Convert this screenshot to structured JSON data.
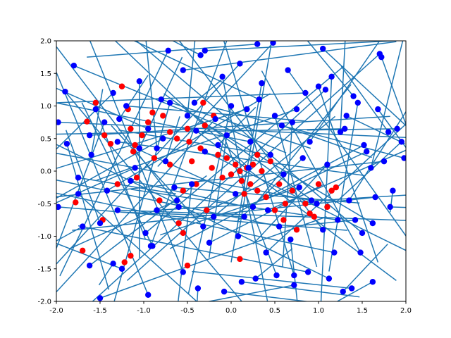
{
  "chart_data": {
    "type": "scatter",
    "title": "",
    "xlabel": "",
    "ylabel": "",
    "xlim": [
      -2.0,
      2.0
    ],
    "ylim": [
      -2.0,
      2.0
    ],
    "grid": false,
    "legend": "none",
    "xticks": [
      "-2.0",
      "-1.5",
      "-1.0",
      "-0.5",
      "0.0",
      "0.5",
      "1.0",
      "1.5",
      "2.0"
    ],
    "yticks": [
      "-2.0",
      "-1.5",
      "-1.0",
      "-0.5",
      "0.0",
      "0.5",
      "1.0",
      "1.5",
      "2.0"
    ],
    "colors": {
      "start_points": "#ff0000",
      "end_points": "#0000ff",
      "lines": "#1f77b4"
    },
    "series": [
      {
        "role": "red points",
        "color": "#ff0000",
        "x": [
          -1.65,
          -1.78,
          -1.55,
          -1.47,
          -1.38,
          -1.25,
          -1.18,
          -1.15,
          -1.12,
          -1.08,
          -1.02,
          -0.95,
          -0.88,
          -0.82,
          -0.78,
          -0.7,
          -0.62,
          -0.55,
          -0.5,
          -0.45,
          -0.4,
          -0.35,
          -0.3,
          -0.28,
          -0.22,
          -0.15,
          -0.1,
          -0.05,
          0.0,
          0.05,
          0.1,
          0.12,
          0.18,
          0.22,
          0.25,
          0.3,
          0.35,
          0.4,
          0.45,
          0.5,
          0.55,
          0.6,
          0.7,
          0.75,
          0.85,
          0.9,
          1.0,
          1.1,
          1.15,
          -1.3,
          -1.1,
          -0.9,
          -0.7,
          -0.6,
          -0.32,
          -0.48,
          0.62,
          0.95,
          1.2,
          -1.45,
          -0.2,
          0.15,
          0.3,
          -1.7,
          -1.15,
          -1.22,
          -0.55,
          -0.5,
          0.1
        ],
        "y": [
          0.76,
          -0.48,
          1.05,
          -0.75,
          0.42,
          1.3,
          0.95,
          0.65,
          0.3,
          -0.1,
          0.55,
          0.75,
          0.2,
          -0.45,
          0.85,
          0.1,
          0.5,
          -0.3,
          0.65,
          0.15,
          -0.2,
          0.35,
          0.7,
          -0.6,
          0.05,
          0.25,
          -0.1,
          0.2,
          -0.05,
          0.1,
          0.0,
          -0.15,
          0.05,
          -0.2,
          0.1,
          -0.3,
          0.0,
          -0.4,
          0.15,
          -0.6,
          -0.2,
          -0.75,
          -0.3,
          -0.9,
          -0.5,
          -0.65,
          -0.2,
          -0.55,
          -0.3,
          -0.2,
          0.4,
          0.9,
          0.6,
          -0.8,
          1.05,
          0.45,
          -0.5,
          -0.7,
          -0.25,
          0.55,
          0.85,
          -0.35,
          0.25,
          -1.22,
          -1.3,
          -1.4,
          -0.95,
          -1.45,
          -1.35
        ]
      },
      {
        "role": "blue points",
        "color": "#0000ff",
        "x": [
          -1.98,
          -1.98,
          -1.8,
          -1.75,
          -1.55,
          -1.5,
          -1.35,
          -1.3,
          -1.15,
          -1.05,
          -0.95,
          -0.85,
          -0.8,
          -0.75,
          -0.62,
          -0.55,
          -0.5,
          -0.45,
          -0.35,
          -0.3,
          -0.2,
          -0.1,
          -0.05,
          0.05,
          0.1,
          0.18,
          0.25,
          0.35,
          0.45,
          0.55,
          0.65,
          0.7,
          0.78,
          0.85,
          0.9,
          1.05,
          1.15,
          1.25,
          1.35,
          1.45,
          1.55,
          1.62,
          1.7,
          1.75,
          1.82,
          1.95,
          1.98,
          -1.88,
          -1.7,
          -1.62,
          -1.42,
          -1.28,
          -1.1,
          -0.98,
          -0.85,
          -0.7,
          -0.6,
          -0.4,
          -0.25,
          -0.15,
          0.0,
          0.15,
          0.22,
          0.4,
          0.5,
          0.6,
          0.75,
          0.92,
          1.0,
          1.1,
          1.22,
          1.3,
          1.4,
          1.5,
          1.6,
          1.68,
          1.85,
          1.9,
          -1.9,
          -1.75,
          -1.6,
          -1.45,
          -1.3,
          -1.2,
          -1.05,
          -0.9,
          -0.78,
          -0.65,
          -0.42,
          -0.32,
          -0.18,
          0.08,
          0.2,
          0.32,
          0.42,
          0.58,
          0.68,
          0.82,
          0.98,
          1.08,
          1.18,
          1.32,
          1.42,
          1.52,
          1.65,
          1.72,
          1.8,
          -1.62,
          -1.35,
          -1.25,
          -0.92,
          -0.55,
          -0.38,
          -0.08,
          0.12,
          0.28,
          0.52,
          0.72,
          0.88,
          1.12,
          1.28,
          1.48,
          0.48,
          -0.72,
          1.05,
          -1.5,
          1.38,
          0.3,
          -0.3,
          0.72,
          -0.95,
          1.62
        ],
        "y": [
          0.75,
          -0.55,
          1.62,
          -0.35,
          0.95,
          -0.8,
          1.2,
          0.45,
          -0.15,
          1.38,
          0.65,
          -0.6,
          1.1,
          0.15,
          -0.45,
          1.55,
          0.85,
          -0.2,
          1.78,
          0.3,
          -0.7,
          1.45,
          0.55,
          -0.35,
          1.65,
          0.95,
          -0.55,
          1.35,
          0.25,
          -0.85,
          1.55,
          0.75,
          -0.25,
          1.2,
          0.45,
          -0.9,
          1.45,
          0.6,
          -0.45,
          1.05,
          0.3,
          -0.8,
          1.8,
          0.15,
          -0.55,
          0.45,
          0.2,
          0.42,
          -0.85,
          0.55,
          -0.3,
          0.8,
          0.05,
          -0.95,
          0.35,
          1.05,
          -0.55,
          0.62,
          -1.1,
          0.4,
          1.0,
          -0.7,
          0.45,
          -1.25,
          0.85,
          -0.05,
          0.95,
          -0.45,
          1.3,
          0.1,
          -0.75,
          0.65,
          1.15,
          -0.95,
          0.05,
          0.95,
          -0.3,
          0.65,
          1.22,
          -0.1,
          0.25,
          0.75,
          -0.6,
          1.0,
          0.35,
          -1.15,
          0.5,
          -0.25,
          1.05,
          -0.85,
          0.8,
          -1.0,
          0.05,
          1.1,
          -0.6,
          0.7,
          -1.05,
          0.2,
          -0.5,
          1.25,
          -1.25,
          0.85,
          -0.75,
          0.4,
          -0.4,
          1.75,
          0.6,
          -1.45,
          -1.42,
          -1.5,
          -1.15,
          -1.55,
          -1.8,
          -1.85,
          -1.7,
          -1.65,
          -1.6,
          -1.75,
          -1.55,
          -1.65,
          -1.85,
          -1.25,
          1.97,
          1.85,
          1.88,
          -1.95,
          -1.8,
          1.95,
          1.85,
          -1.6,
          -1.9,
          -1.7
        ]
      }
    ]
  }
}
